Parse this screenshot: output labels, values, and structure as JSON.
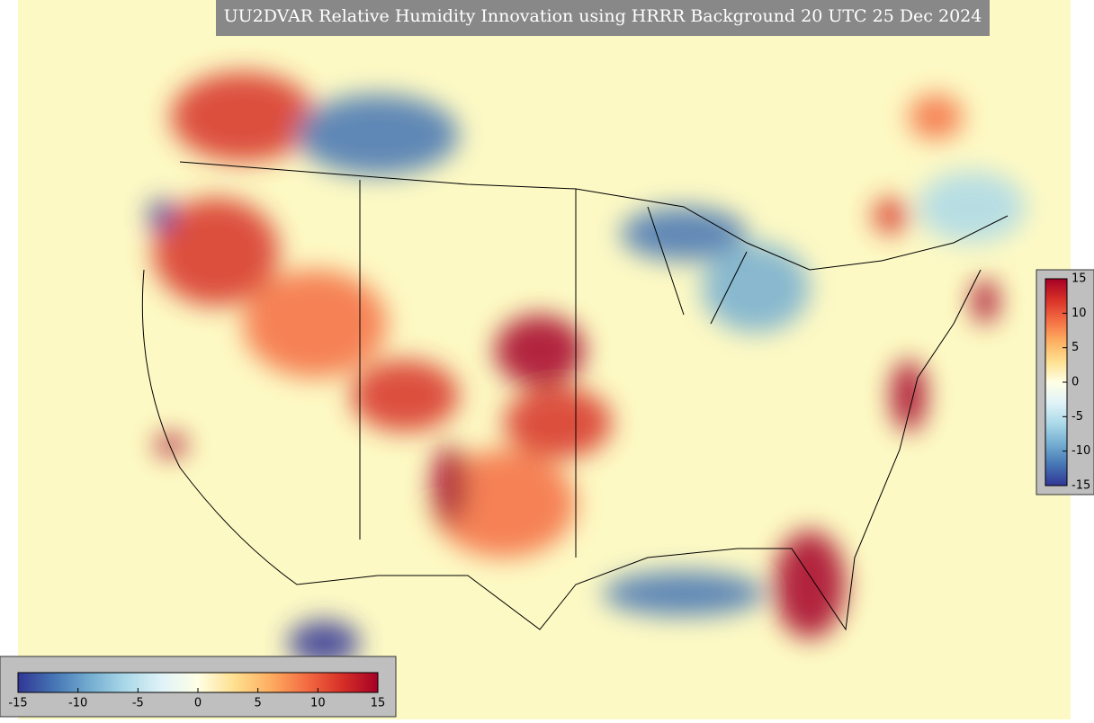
{
  "title": "UU2DVAR Relative Humidity Innovation using HRRR Background 20 UTC 25 Dec 2024",
  "colormap": [
    "#313695",
    "#4575b4",
    "#74add1",
    "#abd9e9",
    "#e0f3f8",
    "#ffffe5",
    "#fee090",
    "#fdae61",
    "#f46d43",
    "#d73027",
    "#a50026"
  ],
  "colorbars": [
    {
      "orientation": "vertical",
      "range": [
        -15,
        15
      ],
      "ticks": [
        15,
        10,
        5,
        0,
        -5,
        -10,
        -15
      ]
    },
    {
      "orientation": "horizontal",
      "range": [
        -15,
        15
      ],
      "ticks": [
        -15,
        -10,
        -5,
        0,
        5,
        10,
        15
      ]
    }
  ]
}
